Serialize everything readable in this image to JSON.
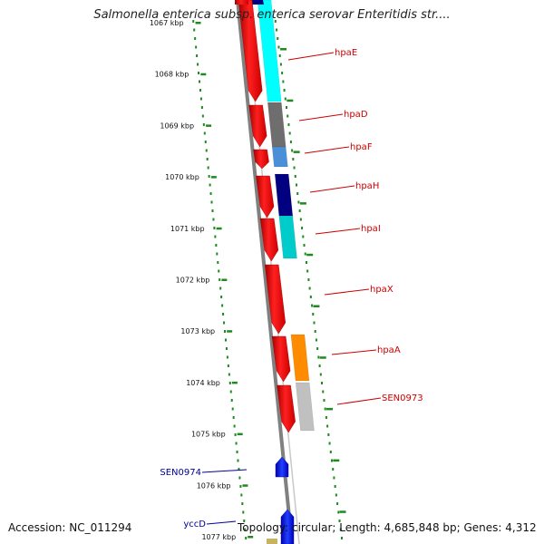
{
  "title": "Salmonella enterica subsp. enterica serovar Enteritidis str....",
  "accession": "Accession: NC_011294",
  "topology": "Topology: circular; Length: 4,685,848 bp; Genes: 4,312",
  "scale_labels": [
    "1067 kbp",
    "1068 kbp",
    "1069 kbp",
    "1070 kbp",
    "1071 kbp",
    "1072 kbp",
    "1073 kbp",
    "1074 kbp",
    "1075 kbp",
    "1076 kbp",
    "1077 kbp"
  ],
  "genes": [
    {
      "name": "hpaE",
      "color": "#ff0000",
      "strand": "minus"
    },
    {
      "name": "hpaD",
      "color": "#ff0000",
      "strand": "minus"
    },
    {
      "name": "hpaF",
      "color": "#ff0000",
      "strand": "minus"
    },
    {
      "name": "hpaH",
      "color": "#ff0000",
      "strand": "minus"
    },
    {
      "name": "hpaI",
      "color": "#ff0000",
      "strand": "minus"
    },
    {
      "name": "hpaX",
      "color": "#ff0000",
      "strand": "minus"
    },
    {
      "name": "hpaA",
      "color": "#ff0000",
      "strand": "minus"
    },
    {
      "name": "SEN0973",
      "color": "#ff0000",
      "strand": "minus"
    },
    {
      "name": "SEN0974",
      "color": "#0000cc",
      "strand": "plus"
    },
    {
      "name": "yccD",
      "color": "#0000cc",
      "strand": "plus"
    }
  ],
  "colors": {
    "red_gene": "#ff0000",
    "blue_gene": "#0000ff",
    "label_red": "#cc0000",
    "label_blue": "#000099",
    "scale_green": "#1f8a1f",
    "backbone": "#808080"
  },
  "cog_colors": [
    "#00ffff",
    "#6e6e6e",
    "#4a90d9",
    "#000080",
    "#00cccc",
    "#ff8c00",
    "#c0c0c0"
  ]
}
